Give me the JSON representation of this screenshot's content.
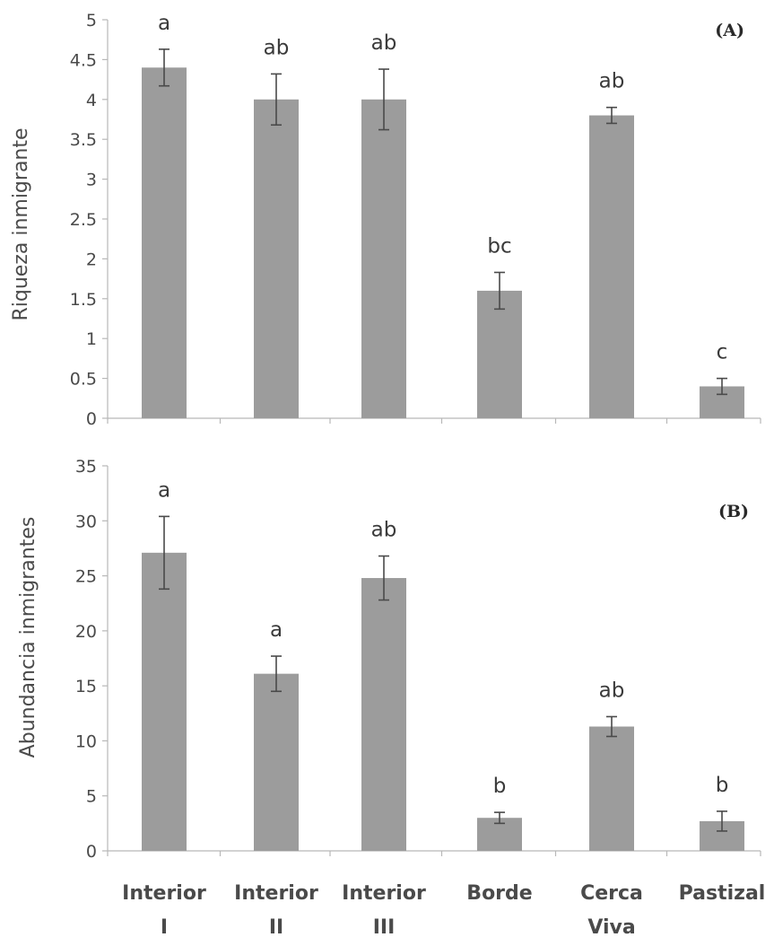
{
  "chart_data": [
    {
      "type": "bar",
      "panel_label": "(A)",
      "ylabel": "Riqueza inmigrante",
      "ylim": [
        0,
        5
      ],
      "yticks": [
        0,
        0.5,
        1,
        1.5,
        2,
        2.5,
        3,
        3.5,
        4,
        4.5,
        5
      ],
      "ytick_labels": [
        "0",
        "0.5",
        "1",
        "1.5",
        "2",
        "2.5",
        "3",
        "3.5",
        "4",
        "4.5",
        "5"
      ],
      "categories": [
        "Interior I",
        "Interior II",
        "Interior III",
        "Borde",
        "Cerca Viva",
        "Pastizal"
      ],
      "values": [
        4.4,
        4.0,
        4.0,
        1.6,
        3.8,
        0.4
      ],
      "errors": [
        0.23,
        0.32,
        0.38,
        0.23,
        0.1,
        0.1
      ],
      "significance": [
        "a",
        "ab",
        "ab",
        "bc",
        "ab",
        "c"
      ],
      "grid": false,
      "bar_color": "#9c9c9c"
    },
    {
      "type": "bar",
      "panel_label": "(B)",
      "ylabel": "Abundancia inmigrantes",
      "ylim": [
        0,
        35
      ],
      "yticks": [
        0,
        5,
        10,
        15,
        20,
        25,
        30,
        35
      ],
      "ytick_labels": [
        "0",
        "5",
        "10",
        "15",
        "20",
        "25",
        "30",
        "35"
      ],
      "categories": [
        "Interior I",
        "Interior II",
        "Interior III",
        "Borde",
        "Cerca Viva",
        "Pastizal"
      ],
      "category_labels": [
        [
          "Interior",
          "I"
        ],
        [
          "Interior",
          "II"
        ],
        [
          "Interior",
          "III"
        ],
        [
          "Borde",
          ""
        ],
        [
          "Cerca",
          "Viva"
        ],
        [
          "Pastizal",
          ""
        ]
      ],
      "values": [
        27.1,
        16.1,
        24.8,
        3.0,
        11.3,
        2.7
      ],
      "errors": [
        3.3,
        1.6,
        2.0,
        0.5,
        0.9,
        0.9
      ],
      "significance": [
        "a",
        "a",
        "ab",
        "b",
        "ab",
        "b"
      ],
      "grid": false,
      "bar_color": "#9c9c9c"
    }
  ]
}
